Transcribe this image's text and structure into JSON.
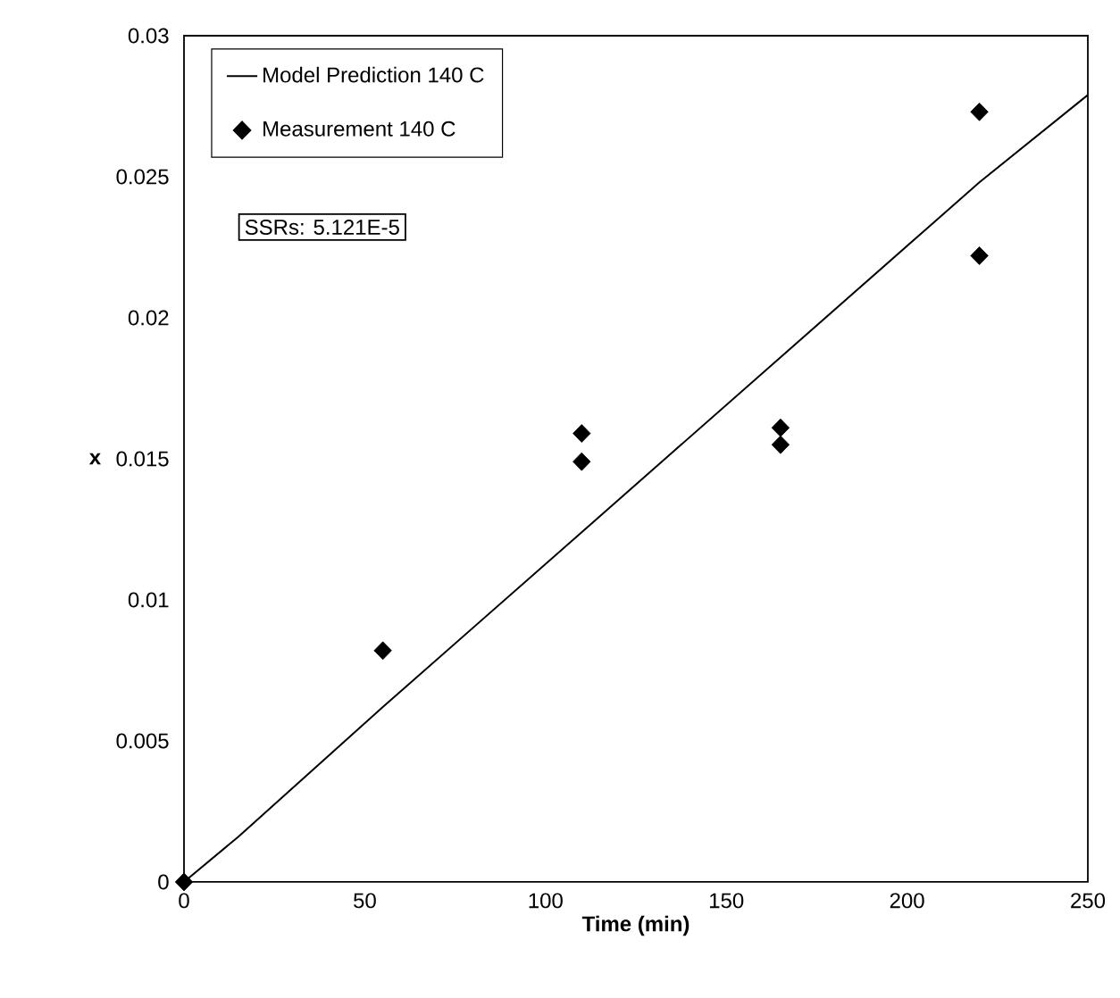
{
  "chart_data": {
    "type": "line",
    "xlabel": "Time (min)",
    "ylabel": "x",
    "xlim": [
      0,
      250
    ],
    "ylim": [
      0,
      0.03
    ],
    "xticks": [
      0,
      50,
      100,
      150,
      200,
      250
    ],
    "yticks": [
      0,
      0.005,
      0.01,
      0.015,
      0.02,
      0.025,
      0.03
    ],
    "legend": "top left",
    "annotations": [
      "SSRs: 5.121E-5"
    ],
    "series": [
      {
        "name": "Model Prediction 140 C",
        "color": "#000000",
        "marker": "none",
        "line_style": "solid",
        "x": [
          0,
          15,
          55,
          110,
          165,
          220,
          250
        ],
        "values": [
          0,
          0.0016,
          0.0062,
          0.0124,
          0.0186,
          0.0248,
          0.0279
        ]
      },
      {
        "name": "Measurement 140 C",
        "type": "scatter",
        "color": "#000000",
        "marker": "diamond",
        "x": [
          0,
          55,
          110,
          110,
          165,
          165,
          220,
          220
        ],
        "values": [
          0,
          0.0082,
          0.0159,
          0.0149,
          0.0161,
          0.0155,
          0.0273,
          0.0222
        ]
      }
    ]
  }
}
